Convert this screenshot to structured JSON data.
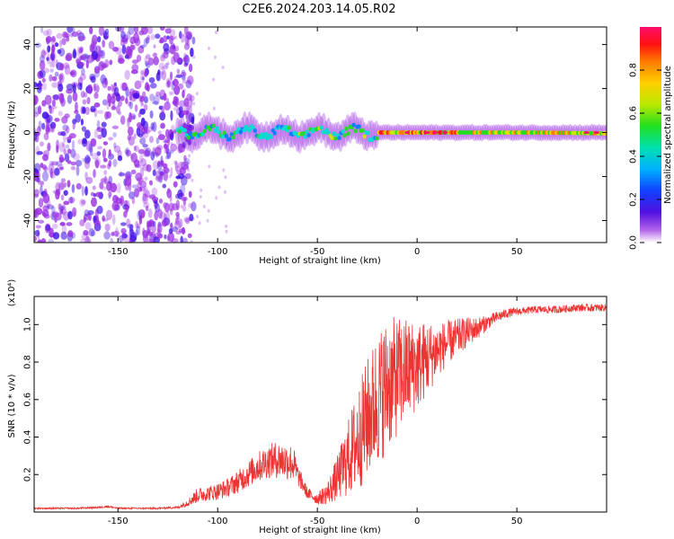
{
  "title": "C2E6.2024.203.14.05.R02",
  "chart_data": [
    {
      "type": "heatmap",
      "xlabel": "Height of straight line (km)",
      "ylabel": "Frequency (Hz)",
      "xlim": [
        -192,
        95
      ],
      "ylim": [
        -50,
        48
      ],
      "xticks": [
        -150,
        -100,
        -50,
        0,
        50
      ],
      "yticks": [
        -40,
        -20,
        0,
        20,
        40
      ],
      "colorbar": {
        "label": "Normalized spectral amplitude",
        "range": [
          0,
          1
        ],
        "ticks": [
          "0.0",
          "0.2",
          "0.4",
          "0.6",
          "0.8"
        ],
        "tick_values": [
          0,
          0.2,
          0.4,
          0.6,
          0.8
        ],
        "colors": [
          "#ffffff",
          "#9a2fe3",
          "#3a08e6",
          "#0a7cff",
          "#00dfd0",
          "#22dd22",
          "#c8e800",
          "#ffd000",
          "#ff7a00",
          "#ff1010",
          "#ff0d6e"
        ]
      },
      "grid": false,
      "description_of_regions": {
        "noise_region_x": [
          -192,
          -120
        ],
        "signal_track_x": [
          -120,
          95
        ],
        "signal_track_frequency_hz": 0
      }
    },
    {
      "type": "line",
      "xlabel": "Height of straight line (km)",
      "ylabel": "SNR (10 * v/v)",
      "y_scale_label": "(x10⁴)",
      "xlim": [
        -192,
        95
      ],
      "ylim": [
        0,
        1.15
      ],
      "xticks": [
        -150,
        -100,
        -50,
        0,
        50
      ],
      "yticks": [
        0.2,
        0.4,
        0.6,
        0.8,
        1.0
      ],
      "ytick_labels": [
        "0.2",
        "0.4",
        "0.6",
        "0.8",
        "1.0"
      ],
      "color": "#ee3333",
      "grid": false,
      "series": [
        {
          "x": [
            -192,
            -180,
            -170,
            -160,
            -155,
            -150,
            -140,
            -130,
            -120,
            -115,
            -110,
            -105,
            -100,
            -95,
            -90,
            -85,
            -80,
            -75,
            -70,
            -65,
            -62,
            -60,
            -55,
            -50,
            -45,
            -40,
            -35,
            -30,
            -25,
            -20,
            -15,
            -10,
            -5,
            0,
            5,
            10,
            15,
            20,
            25,
            30,
            35,
            40,
            45,
            50,
            60,
            70,
            80,
            90,
            95
          ],
          "y": [
            0.02,
            0.02,
            0.02,
            0.025,
            0.03,
            0.02,
            0.02,
            0.02,
            0.025,
            0.05,
            0.09,
            0.1,
            0.11,
            0.13,
            0.16,
            0.2,
            0.24,
            0.27,
            0.28,
            0.27,
            0.26,
            0.2,
            0.1,
            0.07,
            0.1,
            0.18,
            0.28,
            0.38,
            0.5,
            0.6,
            0.68,
            0.72,
            0.76,
            0.78,
            0.82,
            0.86,
            0.9,
            0.93,
            0.96,
            0.98,
            1.01,
            1.04,
            1.06,
            1.07,
            1.08,
            1.08,
            1.09,
            1.09,
            1.09
          ],
          "noise_amplitude": [
            0.004,
            0.004,
            0.004,
            0.005,
            0.006,
            0.004,
            0.004,
            0.004,
            0.006,
            0.02,
            0.04,
            0.04,
            0.045,
            0.05,
            0.06,
            0.07,
            0.08,
            0.09,
            0.1,
            0.1,
            0.1,
            0.06,
            0.03,
            0.03,
            0.06,
            0.12,
            0.2,
            0.28,
            0.32,
            0.36,
            0.36,
            0.32,
            0.28,
            0.24,
            0.2,
            0.15,
            0.12,
            0.1,
            0.08,
            0.06,
            0.04,
            0.03,
            0.025,
            0.02,
            0.02,
            0.02,
            0.02,
            0.02,
            0.02
          ]
        }
      ]
    }
  ]
}
